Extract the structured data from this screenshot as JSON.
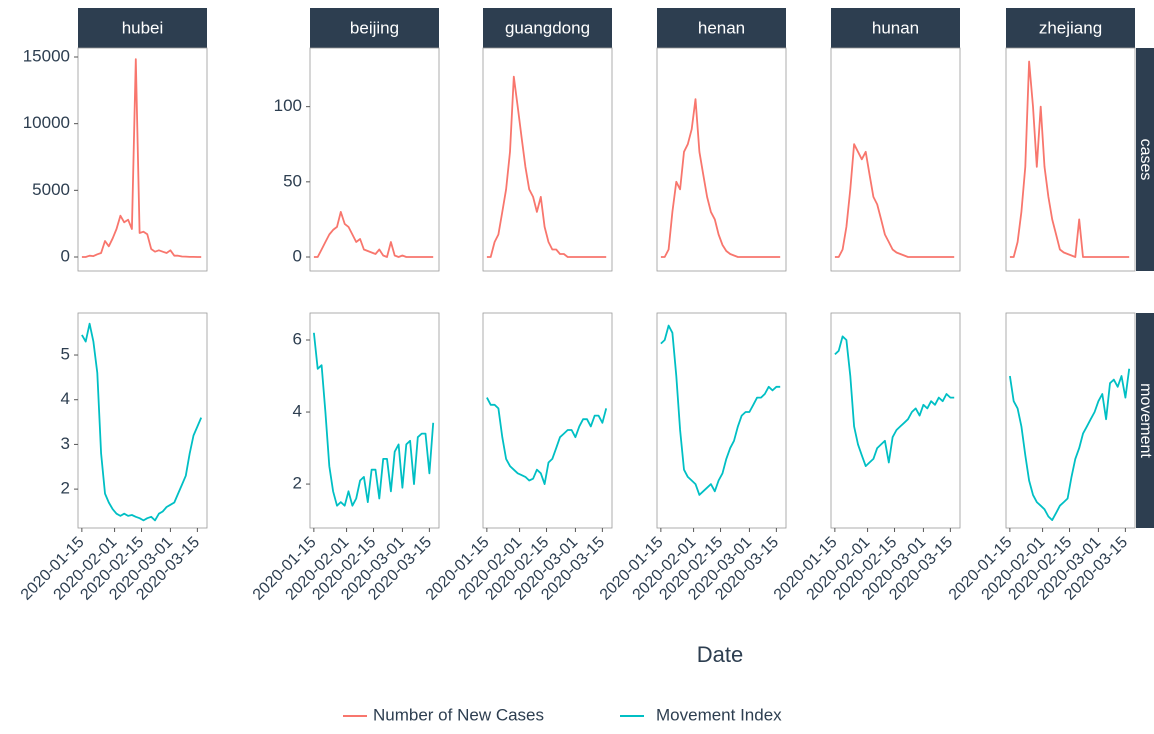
{
  "chart_data": {
    "type": "line",
    "xlabel": "Date",
    "row_labels": [
      "cases",
      "movement"
    ],
    "x": [
      "2020-01-15",
      "2020-01-17",
      "2020-01-19",
      "2020-01-21",
      "2020-01-23",
      "2020-01-25",
      "2020-01-27",
      "2020-01-29",
      "2020-01-31",
      "2020-02-02",
      "2020-02-04",
      "2020-02-06",
      "2020-02-08",
      "2020-02-10",
      "2020-02-12",
      "2020-02-14",
      "2020-02-16",
      "2020-02-18",
      "2020-02-20",
      "2020-02-22",
      "2020-02-24",
      "2020-02-26",
      "2020-02-28",
      "2020-03-01",
      "2020-03-03",
      "2020-03-05",
      "2020-03-07",
      "2020-03-09",
      "2020-03-11",
      "2020-03-13",
      "2020-03-15",
      "2020-03-17"
    ],
    "xlim": [
      "2020-01-13",
      "2020-03-20"
    ],
    "xticks": [
      "2020-01-15",
      "2020-02-01",
      "2020-02-15",
      "2020-03-01",
      "2020-03-15"
    ],
    "series": [
      {
        "name": "Number of New Cases",
        "color": "#f8766d"
      },
      {
        "name": "Movement Index",
        "color": "#00bfc4"
      }
    ],
    "groups": [
      {
        "ylims": [
          [
            -1050,
            15675
          ],
          [
            1.13,
            5.94
          ]
        ],
        "yticks": [
          [
            0,
            5000,
            10000,
            15000
          ],
          [
            2,
            3,
            4,
            5
          ]
        ],
        "panels": [
          {
            "title": "hubei",
            "values": [
              [
                0,
                0,
                100,
                70,
                200,
                300,
                1200,
                800,
                1400,
                2100,
                3100,
                2600,
                2800,
                2100,
                14840,
                1800,
                1900,
                1700,
                600,
                400,
                500,
                400,
                300,
                500,
                100,
                100,
                40,
                30,
                10,
                5,
                0,
                0
              ],
              [
                5.45,
                5.3,
                5.7,
                5.3,
                4.6,
                2.8,
                1.9,
                1.7,
                1.55,
                1.45,
                1.4,
                1.45,
                1.4,
                1.42,
                1.38,
                1.35,
                1.3,
                1.35,
                1.38,
                1.3,
                1.45,
                1.5,
                1.6,
                1.65,
                1.7,
                1.9,
                2.1,
                2.3,
                2.8,
                3.2,
                3.4,
                3.6
              ]
            ]
          }
        ]
      },
      {
        "ylims": [
          [
            -9.3,
            139
          ],
          [
            0.78,
            6.75
          ]
        ],
        "yticks": [
          [
            0,
            50,
            100
          ],
          [
            2,
            4,
            6
          ]
        ],
        "panels": [
          {
            "title": "beijing",
            "values": [
              [
                0,
                0,
                5,
                10,
                15,
                18,
                20,
                30,
                22,
                20,
                15,
                10,
                12,
                5,
                4,
                3,
                2,
                5,
                1,
                0,
                10,
                1,
                0,
                1,
                0,
                0,
                0,
                0,
                0,
                0,
                0,
                0
              ],
              [
                6.2,
                5.2,
                5.3,
                4.0,
                2.5,
                1.8,
                1.4,
                1.5,
                1.4,
                1.8,
                1.4,
                1.6,
                2.1,
                2.2,
                1.5,
                2.4,
                2.4,
                1.6,
                2.7,
                2.7,
                1.8,
                2.9,
                3.1,
                1.9,
                3.1,
                3.2,
                2.0,
                3.3,
                3.4,
                3.4,
                2.3,
                3.7
              ]
            ]
          },
          {
            "title": "guangdong",
            "values": [
              [
                0,
                0,
                10,
                15,
                30,
                45,
                70,
                120,
                100,
                80,
                60,
                45,
                40,
                30,
                40,
                20,
                10,
                5,
                5,
                2,
                2,
                0,
                0,
                0,
                0,
                0,
                0,
                0,
                0,
                0,
                0,
                0
              ],
              [
                4.4,
                4.2,
                4.2,
                4.1,
                3.3,
                2.7,
                2.5,
                2.4,
                2.3,
                2.25,
                2.2,
                2.1,
                2.15,
                2.4,
                2.3,
                2.0,
                2.6,
                2.7,
                3.0,
                3.3,
                3.4,
                3.5,
                3.5,
                3.3,
                3.6,
                3.8,
                3.8,
                3.6,
                3.9,
                3.9,
                3.7,
                4.1
              ]
            ]
          },
          {
            "title": "henan",
            "values": [
              [
                0,
                0,
                5,
                30,
                50,
                45,
                70,
                75,
                85,
                105,
                70,
                55,
                40,
                30,
                25,
                15,
                8,
                4,
                2,
                1,
                0,
                0,
                0,
                0,
                0,
                0,
                0,
                0,
                0,
                0,
                0,
                0
              ],
              [
                5.9,
                6.0,
                6.4,
                6.2,
                5.0,
                3.5,
                2.4,
                2.2,
                2.1,
                2.0,
                1.7,
                1.8,
                1.9,
                2.0,
                1.8,
                2.1,
                2.3,
                2.7,
                3.0,
                3.2,
                3.6,
                3.9,
                4.0,
                4.0,
                4.2,
                4.4,
                4.4,
                4.5,
                4.7,
                4.6,
                4.7,
                4.7
              ]
            ]
          },
          {
            "title": "hunan",
            "values": [
              [
                0,
                0,
                5,
                20,
                45,
                75,
                70,
                65,
                70,
                55,
                40,
                35,
                25,
                15,
                10,
                5,
                3,
                2,
                1,
                0,
                0,
                0,
                0,
                0,
                0,
                0,
                0,
                0,
                0,
                0,
                0,
                0
              ],
              [
                5.6,
                5.7,
                6.1,
                6.0,
                5.0,
                3.6,
                3.1,
                2.8,
                2.5,
                2.6,
                2.7,
                3.0,
                3.1,
                3.2,
                2.6,
                3.3,
                3.5,
                3.6,
                3.7,
                3.8,
                4.0,
                4.1,
                3.9,
                4.2,
                4.1,
                4.3,
                4.2,
                4.4,
                4.3,
                4.5,
                4.4,
                4.4
              ]
            ]
          },
          {
            "title": "zhejiang",
            "values": [
              [
                0,
                0,
                10,
                30,
                60,
                130,
                100,
                60,
                100,
                60,
                40,
                25,
                15,
                5,
                3,
                2,
                1,
                0,
                25,
                0,
                0,
                0,
                0,
                0,
                0,
                0,
                0,
                0,
                0,
                0,
                0,
                0
              ],
              [
                5.0,
                4.3,
                4.1,
                3.6,
                2.8,
                2.1,
                1.7,
                1.5,
                1.4,
                1.3,
                1.1,
                1.0,
                1.2,
                1.4,
                1.5,
                1.6,
                2.2,
                2.7,
                3.0,
                3.4,
                3.6,
                3.8,
                4.0,
                4.3,
                4.5,
                3.8,
                4.8,
                4.9,
                4.7,
                5.0,
                4.4,
                5.2
              ]
            ]
          }
        ]
      }
    ]
  }
}
